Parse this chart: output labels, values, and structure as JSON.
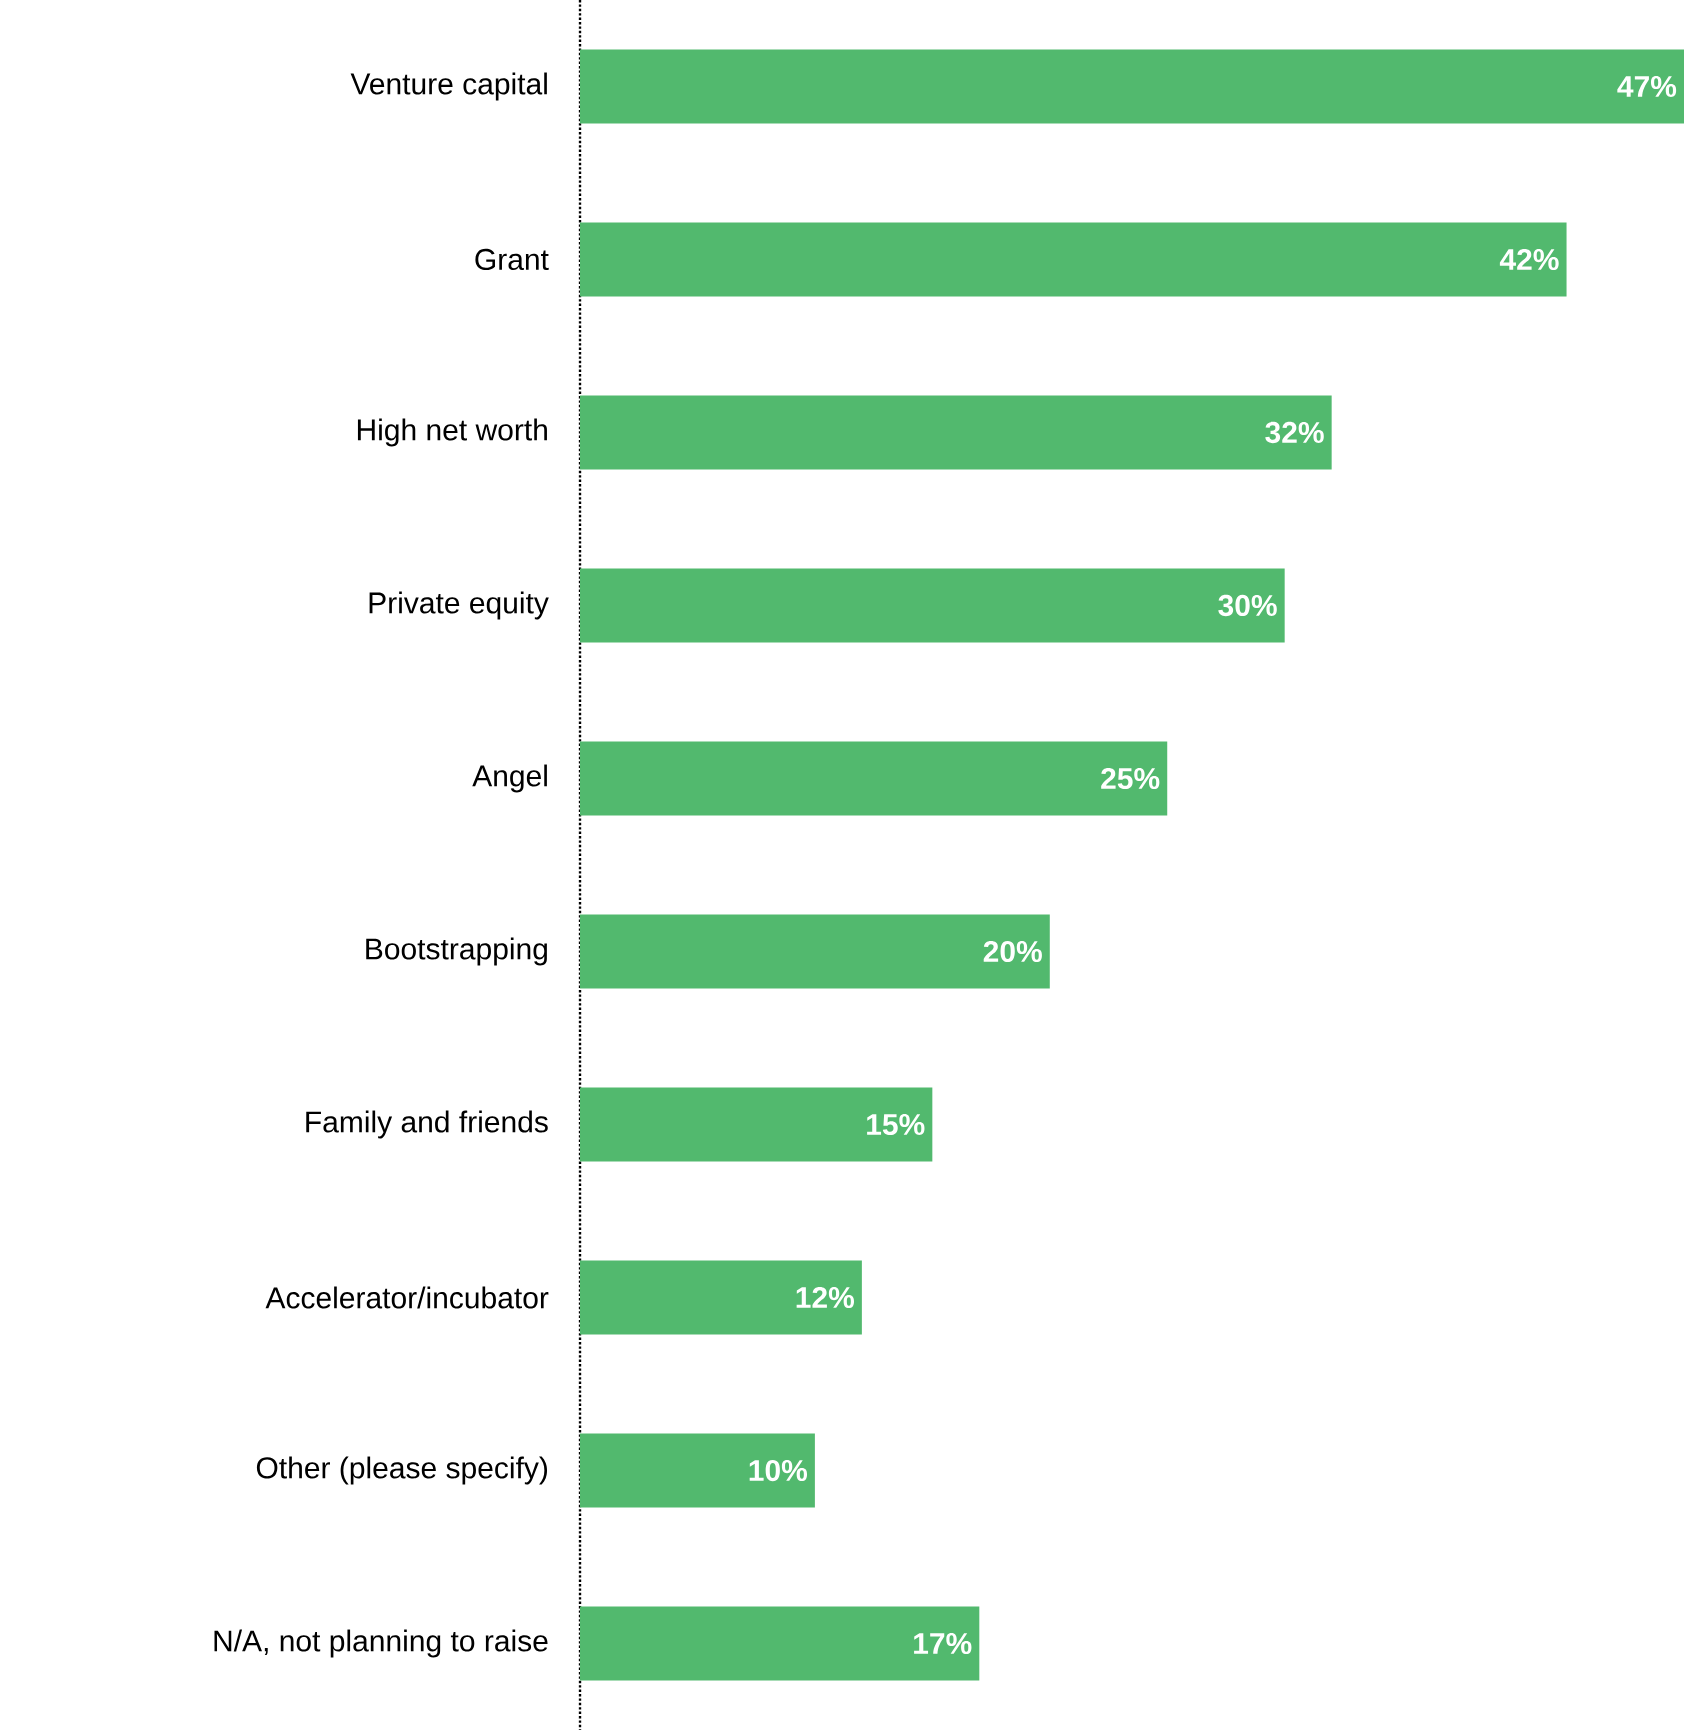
{
  "chart_data": {
    "type": "bar",
    "orientation": "horizontal",
    "color": "#52b96e",
    "categories": [
      "Venture capital",
      "Grant",
      "High net worth",
      "Private equity",
      "Angel",
      "Bootstrapping",
      "Family and friends",
      "Accelerator/incubator",
      "Other (please specify)",
      "N/A, not planning to raise"
    ],
    "values": [
      47,
      42,
      32,
      30,
      25,
      20,
      15,
      12,
      10,
      17
    ],
    "value_labels": [
      "47%",
      "42%",
      "32%",
      "30%",
      "25%",
      "20%",
      "15%",
      "12%",
      "10%",
      "17%"
    ]
  }
}
